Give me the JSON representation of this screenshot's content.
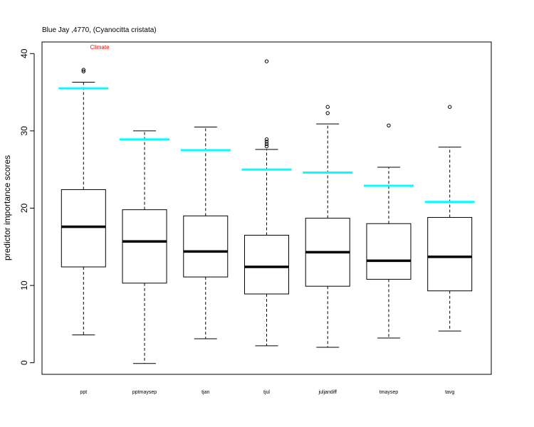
{
  "chart_data": {
    "type": "boxplot",
    "title": "Blue Jay ,4770, (Cyanocitta cristata)",
    "annotation": {
      "text": "Climate",
      "color": "#ff0000"
    },
    "xlabel": "",
    "ylabel": "predictor importance scores",
    "ylim": [
      -1.5,
      41.5
    ],
    "yticks": [
      0,
      10,
      20,
      30,
      40
    ],
    "categories": [
      "ppt",
      "pptmaysep",
      "tjan",
      "tjul",
      "juljandiff",
      "tmaysep",
      "tavg"
    ],
    "boxes": [
      {
        "whisker_low": 3.6,
        "q1": 12.4,
        "median": 17.6,
        "q3": 22.4,
        "whisker_high": 36.3,
        "outliers": [
          37.7,
          37.9
        ],
        "reference": 35.5
      },
      {
        "whisker_low": -0.1,
        "q1": 10.3,
        "median": 15.7,
        "q3": 19.8,
        "whisker_high": 30.0,
        "outliers": [],
        "reference": 28.9
      },
      {
        "whisker_low": 3.1,
        "q1": 11.1,
        "median": 14.4,
        "q3": 19.0,
        "whisker_high": 30.5,
        "outliers": [],
        "reference": 27.5
      },
      {
        "whisker_low": 2.2,
        "q1": 8.9,
        "median": 12.4,
        "q3": 16.5,
        "whisker_high": 27.6,
        "outliers": [
          28.0,
          28.3,
          28.6,
          28.9,
          39.0
        ],
        "reference": 25.0
      },
      {
        "whisker_low": 2.0,
        "q1": 9.9,
        "median": 14.3,
        "q3": 18.7,
        "whisker_high": 30.9,
        "outliers": [
          32.3,
          33.1
        ],
        "reference": 24.6
      },
      {
        "whisker_low": 3.2,
        "q1": 10.8,
        "median": 13.2,
        "q3": 18.0,
        "whisker_high": 25.3,
        "outliers": [
          30.7
        ],
        "reference": 22.9
      },
      {
        "whisker_low": 4.1,
        "q1": 9.3,
        "median": 13.7,
        "q3": 18.8,
        "whisker_high": 27.9,
        "outliers": [
          33.1
        ],
        "reference": 20.8
      }
    ],
    "colors": {
      "box": "#000000",
      "reference": "#00ffff",
      "annotation": "#ff0000"
    },
    "grid": false,
    "legend": "none"
  }
}
